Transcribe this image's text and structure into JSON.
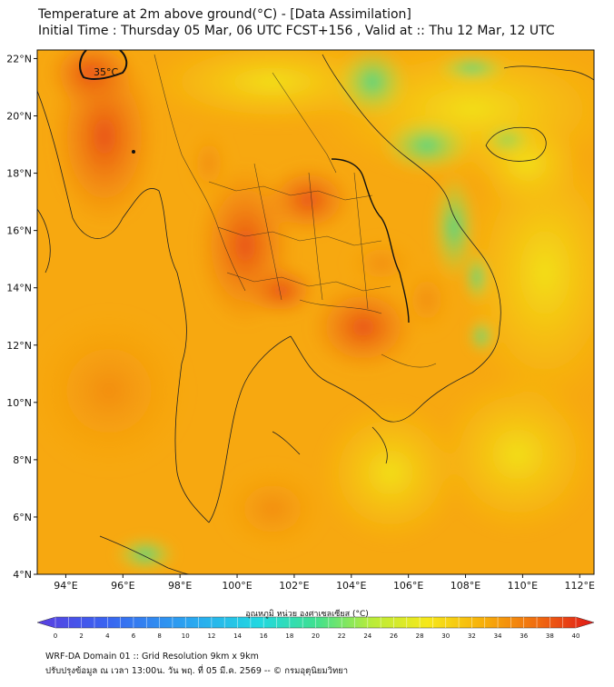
{
  "header": {
    "title": "Temperature at 2m above ground(°C) - [Data Assimilation]",
    "subtitle": "Initial Time : Thursday 05 Mar, 06 UTC FCST+156 , Valid at :: Thu 12 Mar, 12 UTC"
  },
  "map": {
    "lat_labels": [
      "22°N",
      "20°N",
      "18°N",
      "16°N",
      "14°N",
      "12°N",
      "10°N",
      "8°N",
      "6°N",
      "4°N"
    ],
    "lon_labels": [
      "94°E",
      "96°E",
      "98°E",
      "100°E",
      "102°E",
      "104°E",
      "106°E",
      "108°E",
      "110°E",
      "112°E"
    ],
    "lon_range": [
      93,
      112.5
    ],
    "lat_range": [
      4,
      22.3
    ],
    "contour_label": "35°C"
  },
  "colorbar": {
    "title": "อุณหภูมิ หน่วย องศาเซลเซียส (°C)",
    "ticks": [
      "0",
      "2",
      "4",
      "6",
      "8",
      "10",
      "12",
      "14",
      "16",
      "18",
      "20",
      "22",
      "24",
      "26",
      "28",
      "30",
      "32",
      "34",
      "36",
      "38",
      "40"
    ],
    "min": 0,
    "max": 40
  },
  "footer": {
    "line1": "WRF-DA Domain 01 :: Grid Resolution 9km x 9km",
    "line2": "ปรับปรุงข้อมูล ณ เวลา 13:00น. วัน พฤ. ที่ 05 มี.ค. 2569 -- © กรมอุตุนิยมวิทยา"
  }
}
